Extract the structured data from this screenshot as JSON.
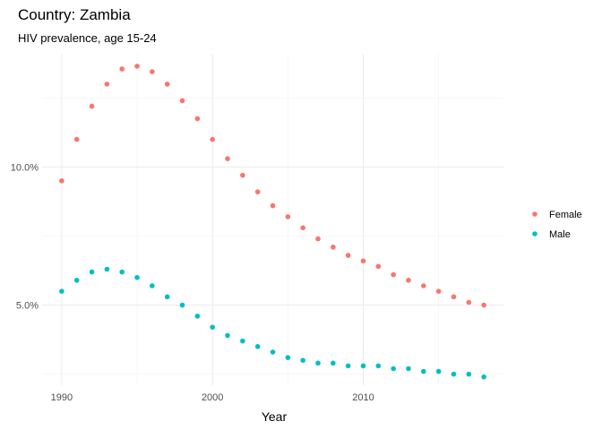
{
  "chart_data": {
    "type": "scatter",
    "title": "Country: Zambia",
    "subtitle": "HIV prevalence, age 15-24",
    "xlabel": "Year",
    "ylabel": "",
    "xlim": [
      1988.7,
      2019.3
    ],
    "ylim": [
      2.1,
      14.1
    ],
    "x_ticks": [
      1990,
      2000,
      2010
    ],
    "x_tick_labels": [
      "1990",
      "2000",
      "2010"
    ],
    "y_ticks": [
      5,
      10
    ],
    "y_tick_labels": [
      "5.0%",
      "10.0%"
    ],
    "grid": true,
    "legend_position": "right",
    "x": [
      1990,
      1991,
      1992,
      1993,
      1994,
      1995,
      1996,
      1997,
      1998,
      1999,
      2000,
      2001,
      2002,
      2003,
      2004,
      2005,
      2006,
      2007,
      2008,
      2009,
      2010,
      2011,
      2012,
      2013,
      2014,
      2015,
      2016,
      2017,
      2018
    ],
    "series": [
      {
        "name": "Female",
        "color": "#F8766D",
        "values": [
          9.5,
          11.0,
          12.2,
          13.0,
          13.55,
          13.65,
          13.45,
          13.0,
          12.4,
          11.75,
          11.0,
          10.3,
          9.7,
          9.1,
          8.6,
          8.2,
          7.8,
          7.4,
          7.1,
          6.8,
          6.6,
          6.4,
          6.1,
          5.9,
          5.7,
          5.5,
          5.3,
          5.1,
          5.0
        ]
      },
      {
        "name": "Male",
        "color": "#00BFC4",
        "values": [
          5.5,
          5.9,
          6.2,
          6.3,
          6.2,
          6.0,
          5.7,
          5.3,
          5.0,
          4.6,
          4.2,
          3.9,
          3.7,
          3.5,
          3.3,
          3.1,
          3.0,
          2.9,
          2.9,
          2.8,
          2.8,
          2.8,
          2.7,
          2.7,
          2.6,
          2.6,
          2.5,
          2.5,
          2.4
        ]
      }
    ]
  }
}
